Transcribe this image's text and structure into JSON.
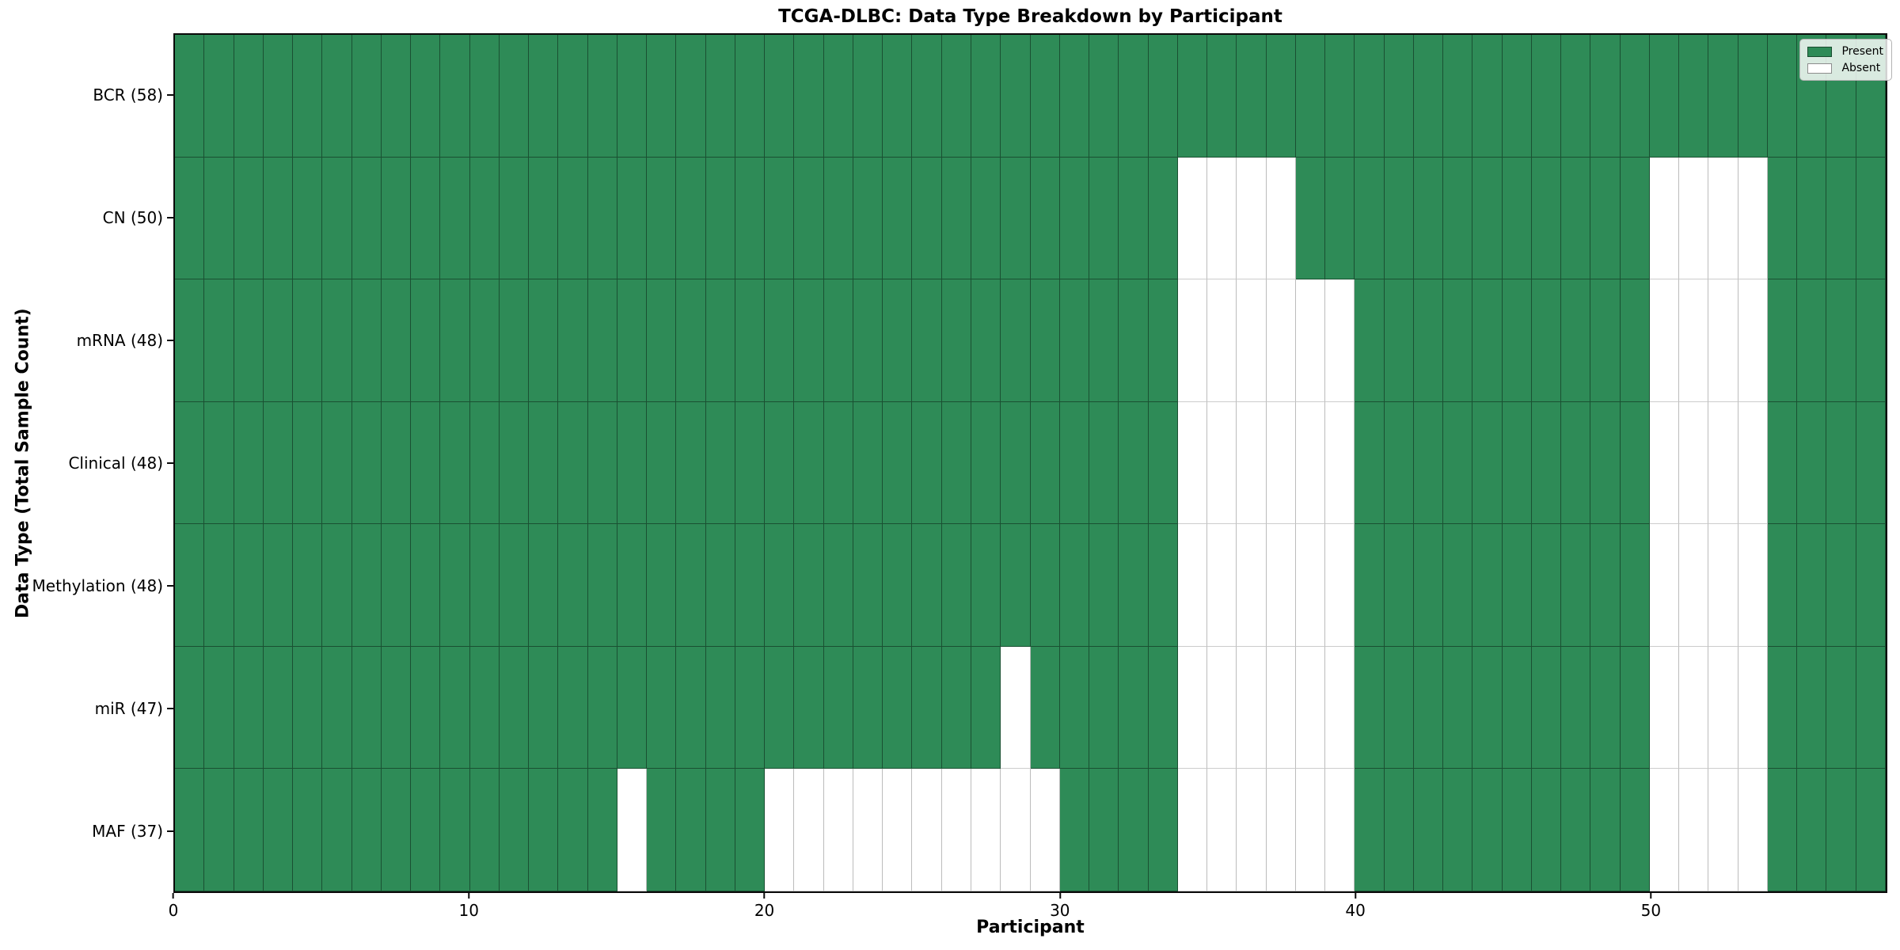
{
  "chart_data": {
    "type": "heatmap",
    "title": "TCGA-DLBC: Data Type Breakdown by Participant",
    "xlabel": "Participant",
    "ylabel": "Data Type (Total Sample Count)",
    "x_ticks": [
      0,
      10,
      20,
      30,
      40,
      50
    ],
    "x_range": [
      0,
      58
    ],
    "n_participants": 58,
    "grid": false,
    "legend_position": "upper right",
    "colors": {
      "present": "#2E8B57",
      "absent": "#FFFFFF"
    },
    "legend": [
      {
        "label": "Present",
        "key": "present"
      },
      {
        "label": "Absent",
        "key": "absent"
      }
    ],
    "rows": [
      {
        "name": "BCR",
        "label": "BCR (58)",
        "total": 58,
        "absent": []
      },
      {
        "name": "CN",
        "label": "CN (50)",
        "total": 50,
        "absent": [
          34,
          35,
          36,
          37,
          50,
          51,
          52,
          53
        ]
      },
      {
        "name": "mRNA",
        "label": "mRNA (48)",
        "total": 48,
        "absent": [
          34,
          35,
          36,
          37,
          38,
          39,
          50,
          51,
          52,
          53
        ]
      },
      {
        "name": "Clinical",
        "label": "Clinical (48)",
        "total": 48,
        "absent": [
          34,
          35,
          36,
          37,
          38,
          39,
          50,
          51,
          52,
          53
        ]
      },
      {
        "name": "Methylation",
        "label": "Methylation (48)",
        "total": 48,
        "absent": [
          34,
          35,
          36,
          37,
          38,
          39,
          50,
          51,
          52,
          53
        ]
      },
      {
        "name": "miR",
        "label": "miR (47)",
        "total": 47,
        "absent": [
          28,
          34,
          35,
          36,
          37,
          38,
          39,
          50,
          51,
          52,
          53
        ]
      },
      {
        "name": "MAF",
        "label": "MAF (37)",
        "total": 37,
        "absent": [
          15,
          20,
          21,
          22,
          23,
          24,
          25,
          26,
          27,
          28,
          29,
          34,
          35,
          36,
          37,
          38,
          39,
          50,
          51,
          52,
          53
        ]
      }
    ]
  }
}
